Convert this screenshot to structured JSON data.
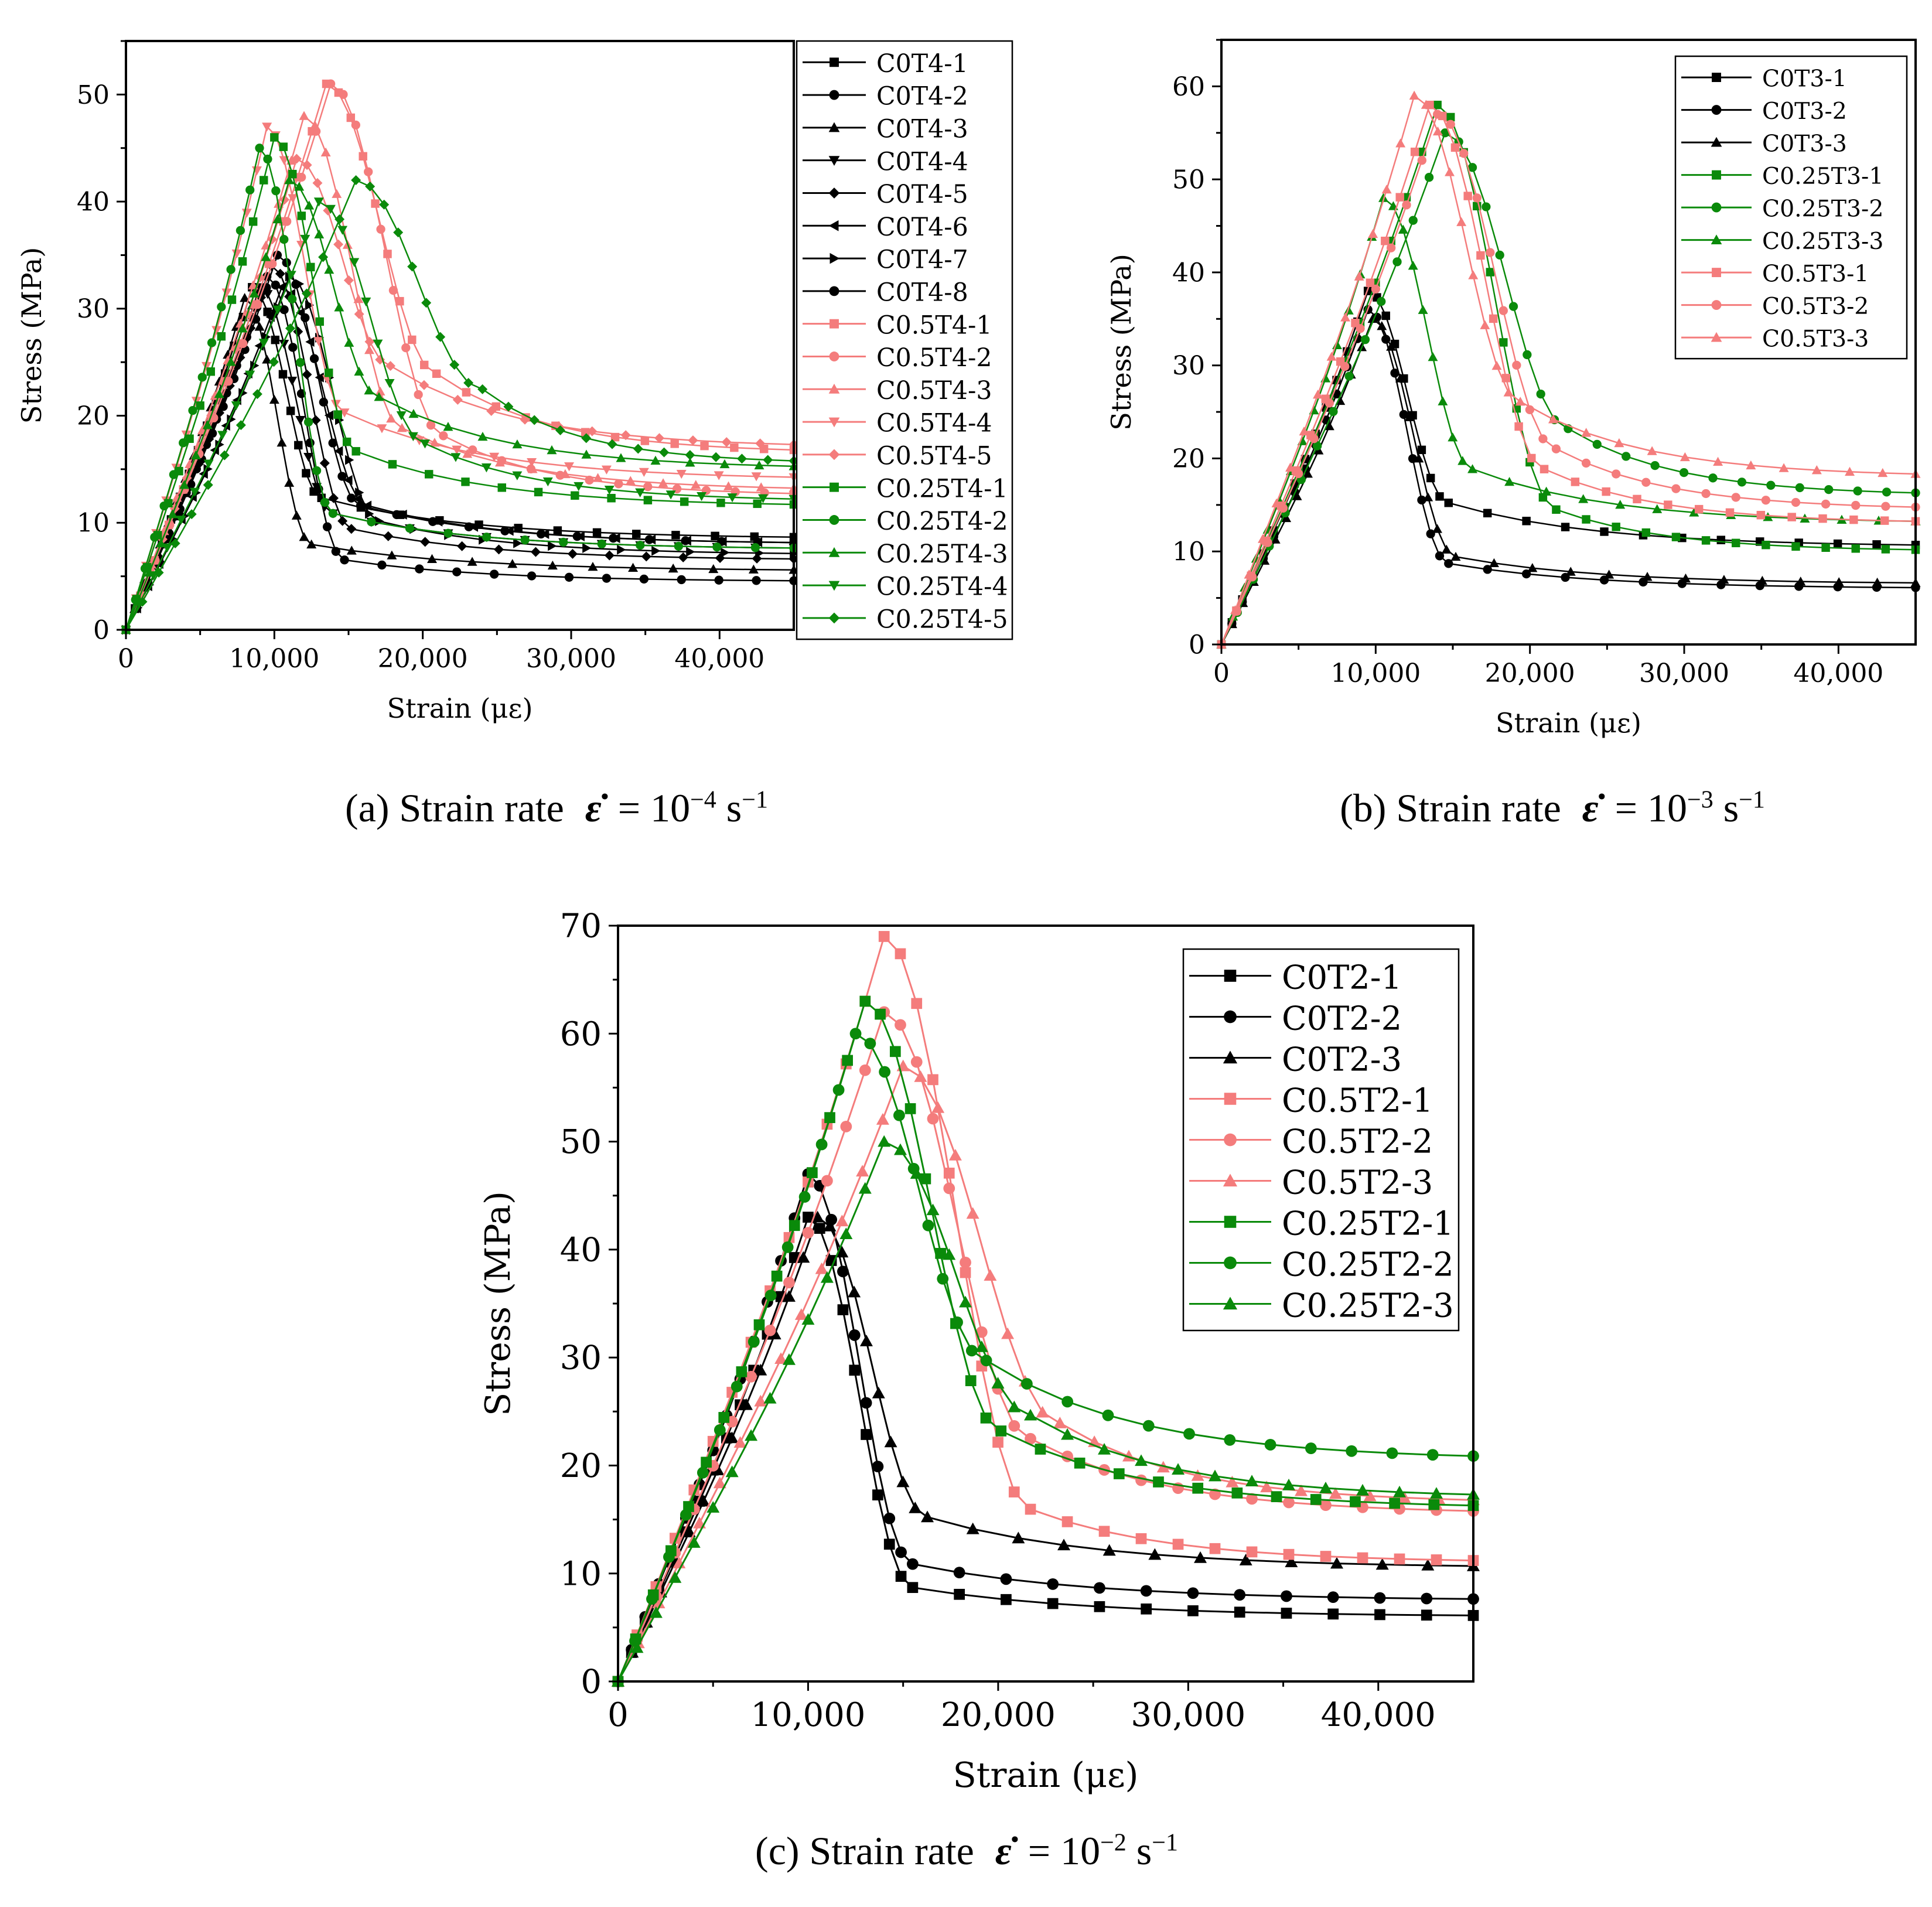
{
  "colors": {
    "black": "#000000",
    "pink": "#f47c7c",
    "green": "#0a8a0a"
  },
  "captions": [
    {
      "prefix": "(a) Strain rate",
      "symbol": "ε̇",
      "equals": "= 10",
      "exp": "−4",
      "unit": "s",
      "unit_exp": "−1"
    },
    {
      "prefix": "(b) Strain rate",
      "symbol": "ε̇",
      "equals": "= 10",
      "exp": "−3",
      "unit": "s",
      "unit_exp": "−1"
    },
    {
      "prefix": "(c) Strain rate",
      "symbol": "ε̇",
      "equals": "= 10",
      "exp": "−2",
      "unit": "s",
      "unit_exp": "−1"
    }
  ],
  "chart_data": [
    {
      "type": "line",
      "xlabel": "Strain (με)",
      "ylabel": "Stress (MPa)",
      "xlim": [
        0,
        45000
      ],
      "ylim": [
        0,
        55
      ],
      "xticks": [
        0,
        10000,
        20000,
        30000,
        40000
      ],
      "xtick_labels": [
        "0",
        "10,000",
        "20,000",
        "30,000",
        "40,000"
      ],
      "yticks": [
        0,
        10,
        20,
        30,
        40,
        50
      ],
      "ytick_labels": [
        "0",
        "10",
        "20",
        "30",
        "40",
        "50"
      ],
      "legend_position": "right-outside",
      "series": [
        {
          "name": "C0T4-1",
          "color": "black",
          "marker": "square",
          "peak": [
            8500,
            32
          ],
          "residual": 8.5
        },
        {
          "name": "C0T4-2",
          "color": "black",
          "marker": "circle",
          "peak": [
            9500,
            33
          ],
          "residual": 4.5
        },
        {
          "name": "C0T4-3",
          "color": "black",
          "marker": "triangle-up",
          "peak": [
            8000,
            31
          ],
          "residual": 5.5
        },
        {
          "name": "C0T4-4",
          "color": "black",
          "marker": "triangle-down",
          "peak": [
            9000,
            32
          ],
          "residual": 7.5
        },
        {
          "name": "C0T4-5",
          "color": "black",
          "marker": "diamond",
          "peak": [
            9800,
            34
          ],
          "residual": 6.5
        },
        {
          "name": "C0T4-6",
          "color": "black",
          "marker": "triangle-left",
          "peak": [
            10500,
            32
          ],
          "residual": 8.0
        },
        {
          "name": "C0T4-7",
          "color": "black",
          "marker": "triangle-right",
          "peak": [
            11000,
            33
          ],
          "residual": 7.0
        },
        {
          "name": "C0T4-8",
          "color": "black",
          "marker": "circle",
          "peak": [
            10200,
            35
          ],
          "residual": 8.0
        },
        {
          "name": "C0.5T4-1",
          "color": "pink",
          "marker": "square",
          "peak": [
            13500,
            51
          ],
          "residual": 16.5
        },
        {
          "name": "C0.5T4-2",
          "color": "pink",
          "marker": "circle",
          "peak": [
            13800,
            51
          ],
          "residual": 12.5
        },
        {
          "name": "C0.5T4-3",
          "color": "pink",
          "marker": "triangle-up",
          "peak": [
            12000,
            48
          ],
          "residual": 13.0
        },
        {
          "name": "C0.5T4-4",
          "color": "pink",
          "marker": "triangle-down",
          "peak": [
            9500,
            47
          ],
          "residual": 14.0
        },
        {
          "name": "C0.5T4-5",
          "color": "pink",
          "marker": "diamond",
          "peak": [
            11500,
            44
          ],
          "residual": 17.0
        },
        {
          "name": "C0.25T4-1",
          "color": "green",
          "marker": "square",
          "peak": [
            10000,
            46
          ],
          "residual": 11.5
        },
        {
          "name": "C0.25T4-2",
          "color": "green",
          "marker": "circle",
          "peak": [
            9000,
            45
          ],
          "residual": 7.5
        },
        {
          "name": "C0.25T4-3",
          "color": "green",
          "marker": "triangle-up",
          "peak": [
            11000,
            42
          ],
          "residual": 15.0
        },
        {
          "name": "C0.25T4-4",
          "color": "green",
          "marker": "triangle-down",
          "peak": [
            13000,
            40
          ],
          "residual": 12.0
        },
        {
          "name": "C0.25T4-5",
          "color": "green",
          "marker": "diamond",
          "peak": [
            15500,
            42
          ],
          "residual": 15.5
        }
      ]
    },
    {
      "type": "line",
      "xlabel": "Strain (με)",
      "ylabel": "Stress (MPa)",
      "xlim": [
        0,
        45000
      ],
      "ylim": [
        0,
        65
      ],
      "xticks": [
        0,
        10000,
        20000,
        30000,
        40000
      ],
      "xtick_labels": [
        "0",
        "10,000",
        "20,000",
        "30,000",
        "40,000"
      ],
      "yticks": [
        0,
        10,
        20,
        30,
        40,
        50,
        60
      ],
      "ytick_labels": [
        "0",
        "10",
        "20",
        "30",
        "40",
        "50",
        "60"
      ],
      "legend_position": "top-right",
      "series": [
        {
          "name": "C0T3-1",
          "color": "black",
          "marker": "square",
          "peak": [
            9500,
            38
          ],
          "residual": 10.5
        },
        {
          "name": "C0T3-2",
          "color": "black",
          "marker": "circle",
          "peak": [
            9500,
            36
          ],
          "residual": 6.0
        },
        {
          "name": "C0T3-3",
          "color": "black",
          "marker": "triangle-up",
          "peak": [
            9800,
            35
          ],
          "residual": 6.5
        },
        {
          "name": "C0.25T3-1",
          "color": "green",
          "marker": "square",
          "peak": [
            14000,
            58
          ],
          "residual": 10.0
        },
        {
          "name": "C0.25T3-2",
          "color": "green",
          "marker": "circle",
          "peak": [
            14500,
            55
          ],
          "residual": 16.0
        },
        {
          "name": "C0.25T3-3",
          "color": "green",
          "marker": "triangle-up",
          "peak": [
            10500,
            48
          ],
          "residual": 13.0
        },
        {
          "name": "C0.5T3-1",
          "color": "pink",
          "marker": "square",
          "peak": [
            13500,
            58
          ],
          "residual": 13.0
        },
        {
          "name": "C0.5T3-2",
          "color": "pink",
          "marker": "circle",
          "peak": [
            14000,
            57
          ],
          "residual": 14.5
        },
        {
          "name": "C0.5T3-3",
          "color": "pink",
          "marker": "triangle-up",
          "peak": [
            12500,
            59
          ],
          "residual": 18.0
        }
      ]
    },
    {
      "type": "line",
      "xlabel": "Strain (με)",
      "ylabel": "Stress (MPa)",
      "xlim": [
        0,
        45000
      ],
      "ylim": [
        0,
        70
      ],
      "xticks": [
        0,
        10000,
        20000,
        30000,
        40000
      ],
      "xtick_labels": [
        "0",
        "10,000",
        "20,000",
        "30,000",
        "40,000"
      ],
      "yticks": [
        0,
        10,
        20,
        30,
        40,
        50,
        60,
        70
      ],
      "ytick_labels": [
        "0",
        "10",
        "20",
        "30",
        "40",
        "50",
        "60",
        "70"
      ],
      "legend_position": "top-right",
      "series": [
        {
          "name": "C0T2-1",
          "color": "black",
          "marker": "square",
          "peak": [
            10000,
            43
          ],
          "residual": 6.0
        },
        {
          "name": "C0T2-2",
          "color": "black",
          "marker": "circle",
          "peak": [
            10000,
            47
          ],
          "residual": 7.5
        },
        {
          "name": "C0T2-3",
          "color": "black",
          "marker": "triangle-up",
          "peak": [
            10500,
            43
          ],
          "residual": 10.5
        },
        {
          "name": "C0.5T2-1",
          "color": "pink",
          "marker": "square",
          "peak": [
            14000,
            69
          ],
          "residual": 11.0
        },
        {
          "name": "C0.5T2-2",
          "color": "pink",
          "marker": "circle",
          "peak": [
            14000,
            62
          ],
          "residual": 15.5
        },
        {
          "name": "C0.5T2-3",
          "color": "pink",
          "marker": "triangle-up",
          "peak": [
            15000,
            57
          ],
          "residual": 16.5
        },
        {
          "name": "C0.25T2-1",
          "color": "green",
          "marker": "square",
          "peak": [
            13000,
            63
          ],
          "residual": 16.0
        },
        {
          "name": "C0.25T2-2",
          "color": "green",
          "marker": "circle",
          "peak": [
            12500,
            60
          ],
          "residual": 20.5
        },
        {
          "name": "C0.25T2-3",
          "color": "green",
          "marker": "triangle-up",
          "peak": [
            14000,
            50
          ],
          "residual": 17.0
        }
      ]
    }
  ]
}
